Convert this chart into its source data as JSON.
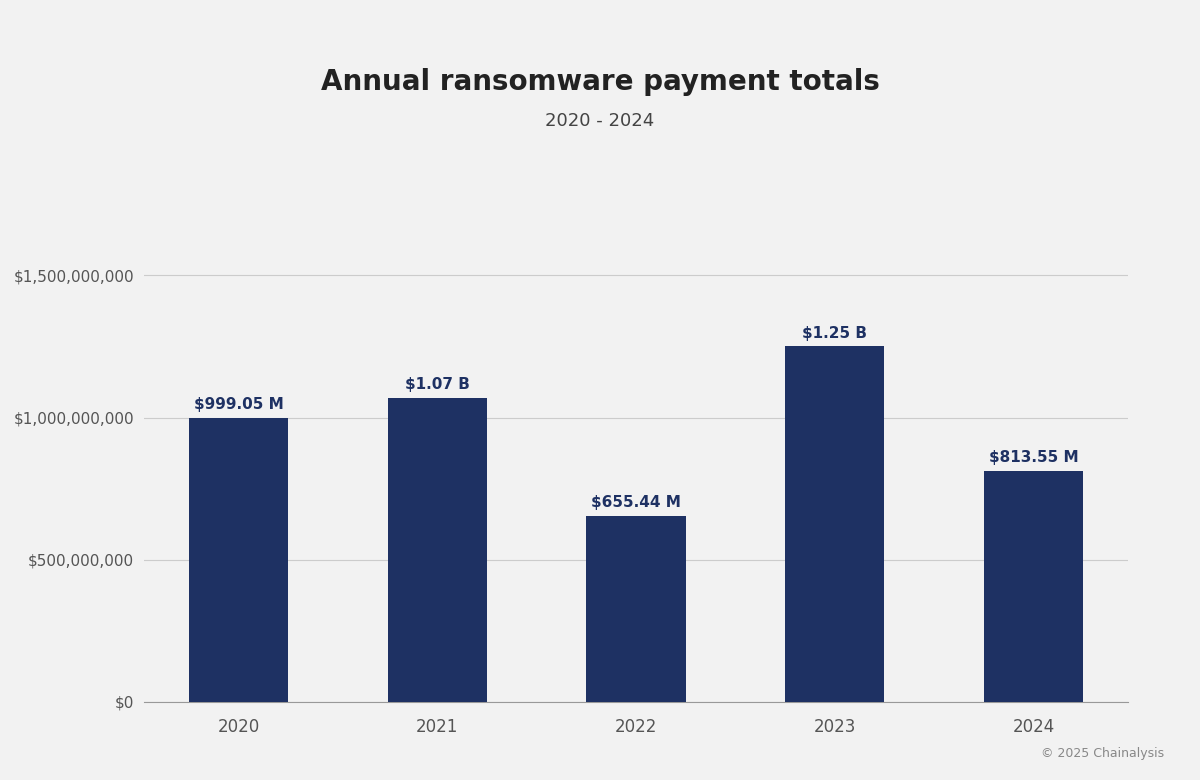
{
  "title": "Annual ransomware payment totals",
  "subtitle": "2020 - 2024",
  "categories": [
    "2020",
    "2021",
    "2022",
    "2023",
    "2024"
  ],
  "values": [
    999050000,
    1070000000,
    655440000,
    1250000000,
    813550000
  ],
  "bar_labels": [
    "$999.05 M",
    "$1.07 B",
    "$655.44 M",
    "$1.25 B",
    "$813.55 M"
  ],
  "bar_color": "#1e3163",
  "background_color": "#f2f2f2",
  "title_color": "#222222",
  "subtitle_color": "#444444",
  "label_color": "#1e3163",
  "tick_color": "#555555",
  "grid_color": "#cccccc",
  "ytick_labels": [
    "$0",
    "$500,000,000",
    "$1,000,000,000",
    "$1,500,000,000"
  ],
  "ytick_values": [
    0,
    500000000,
    1000000000,
    1500000000
  ],
  "ylim": [
    0,
    1700000000
  ],
  "copyright_text": "© 2025 Chainalysis",
  "title_fontsize": 20,
  "subtitle_fontsize": 13,
  "label_fontsize": 11,
  "tick_fontsize": 11,
  "bar_width": 0.5
}
